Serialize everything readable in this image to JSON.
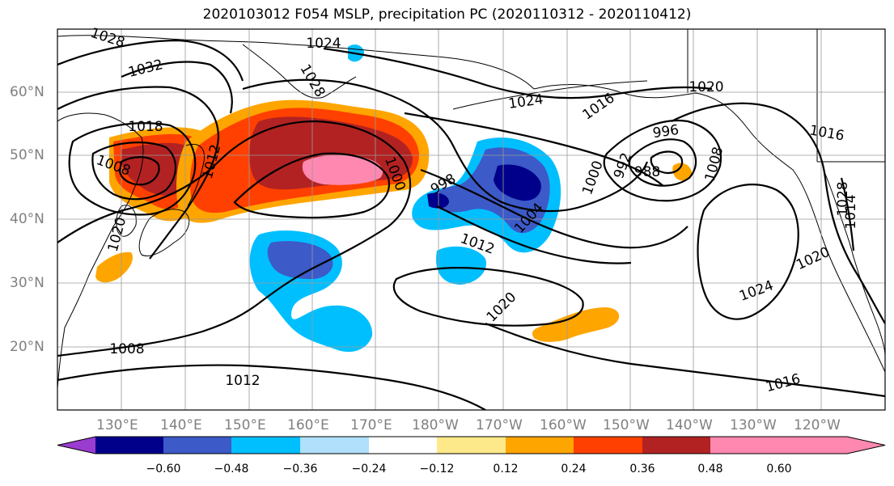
{
  "title": "2020103012 F054 MSLP, precipitation PC (2020110312 - 2020110412)",
  "lat_labels": [
    "60°N",
    "50°N",
    "40°N",
    "30°N",
    "20°N"
  ],
  "lon_labels": [
    "130°E",
    "140°E",
    "150°E",
    "160°E",
    "170°E",
    "180°W",
    "170°W",
    "160°W",
    "150°W",
    "140°W",
    "130°W",
    "120°W"
  ],
  "isobar_labels": [
    "1028",
    "1024",
    "1032",
    "1018",
    "1028",
    "1024",
    "1016",
    "1020",
    "996",
    "992",
    "988",
    "1016",
    "1008",
    "1012",
    "1000",
    "998",
    "1004",
    "1000",
    "1008",
    "1014",
    "1020",
    "1012",
    "1028",
    "1020",
    "1024",
    "1020",
    "1008",
    "1012",
    "1016"
  ],
  "colorbar": {
    "tick_labels": [
      "−0.60",
      "−0.48",
      "−0.36",
      "−0.24",
      "−0.12",
      "0.12",
      "0.24",
      "0.36",
      "0.48",
      "0.60"
    ],
    "colors": [
      "#9a3cd0",
      "#00008b",
      "#3c5ac8",
      "#00bfff",
      "#b0e0fc",
      "#ffffff",
      "#fde98a",
      "#ffa500",
      "#ff4000",
      "#b22222",
      "#ff88b0",
      "#ff88b0"
    ]
  }
}
